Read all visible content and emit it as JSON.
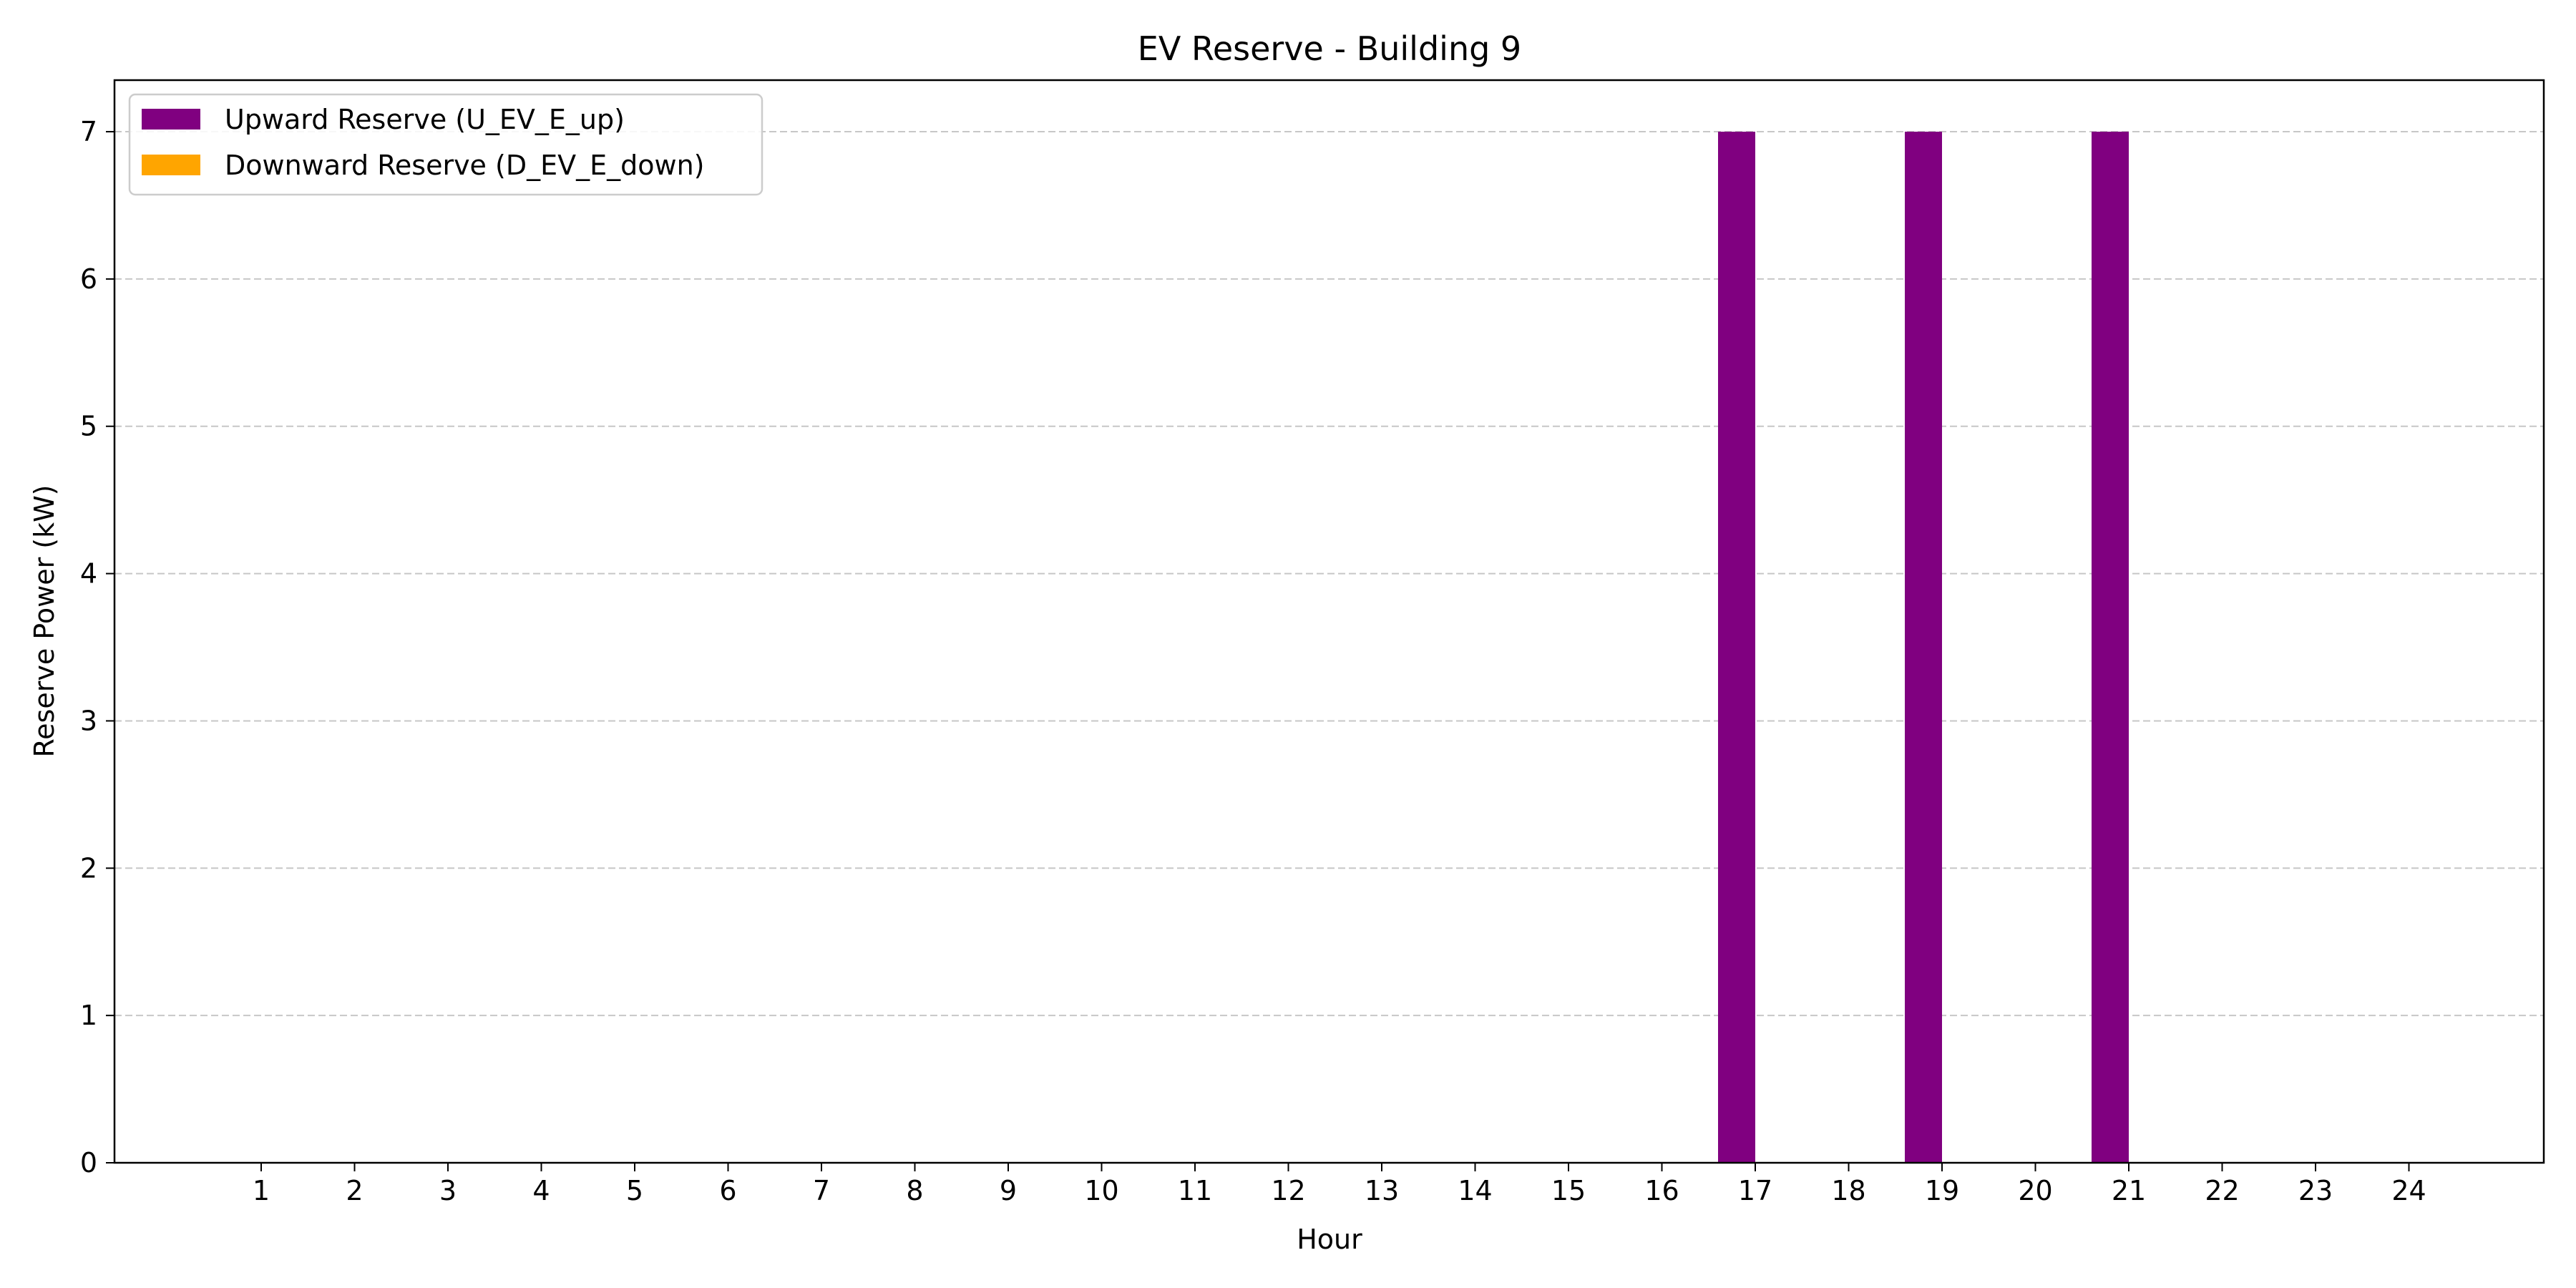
{
  "chart_data": {
    "type": "bar",
    "title": "EV Reserve - Building 9",
    "xlabel": "Hour",
    "ylabel": "Reserve Power (kW)",
    "categories": [
      "1",
      "2",
      "3",
      "4",
      "5",
      "6",
      "7",
      "8",
      "9",
      "10",
      "11",
      "12",
      "13",
      "14",
      "15",
      "16",
      "17",
      "18",
      "19",
      "20",
      "21",
      "22",
      "23",
      "24"
    ],
    "yticks": [
      "0",
      "1",
      "2",
      "3",
      "4",
      "5",
      "6",
      "7"
    ],
    "ylim": [
      0,
      7.35
    ],
    "grid": "horizontal dashed",
    "legend_position": "upper-left",
    "series": [
      {
        "name": "Upward Reserve (U_EV_E_up)",
        "color": "#800080",
        "offset": "left",
        "values": [
          0,
          0,
          0,
          0,
          0,
          0,
          0,
          0,
          0,
          0,
          0,
          0,
          0,
          0,
          0,
          0,
          7,
          0,
          7,
          0,
          7,
          0,
          0,
          0
        ]
      },
      {
        "name": "Downward Reserve (D_EV_E_down)",
        "color": "#FFA500",
        "offset": "right",
        "values": [
          0,
          0,
          0,
          0,
          0,
          0,
          0,
          0,
          0,
          0,
          0,
          0,
          0,
          0,
          0,
          0,
          0,
          0,
          0,
          0,
          0,
          0,
          0,
          0
        ]
      }
    ]
  }
}
